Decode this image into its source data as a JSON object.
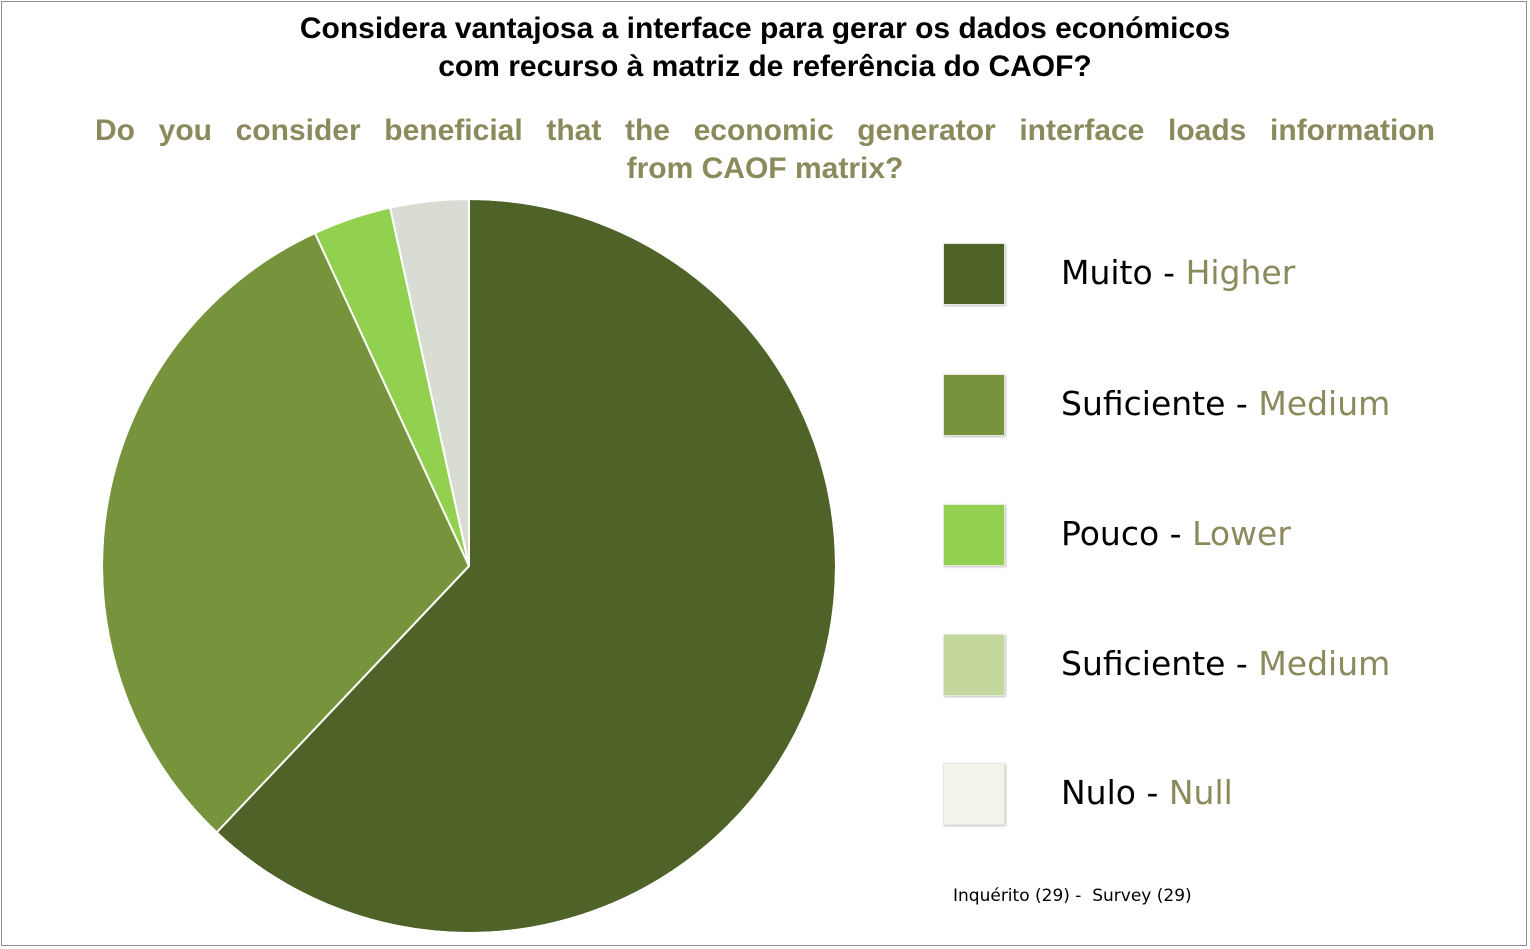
{
  "chart_data": {
    "type": "pie",
    "title": "Considera vantajosa a interface para gerar os dados económicos com recurso à matriz de referência do CAOF?",
    "title_lines": [
      "Considera vantajosa a interface para gerar os dados económicos",
      "com recurso à matriz de referência do CAOF?"
    ],
    "subtitle": "Do you consider beneficial that the economic generator interface loads information from CAOF matrix?",
    "subtitle_lines": [
      "Do you consider beneficial that the economic generator interface loads information",
      "from CAOF matrix?"
    ],
    "slices": [
      {
        "label_pt": "Muito",
        "label_en": "Higher",
        "value": 18,
        "color": "#4f6228"
      },
      {
        "label_pt": "Suficiente",
        "label_en": "Medium",
        "value": 9,
        "color": "#77933c"
      },
      {
        "label_pt": "Pouco",
        "label_en": "Lower",
        "value": 1,
        "color": "#92d050"
      },
      {
        "label_pt": "Suficiente",
        "label_en": "Medium",
        "value": 0,
        "color": "#c3d69b"
      },
      {
        "label_pt": "Nulo",
        "label_en": "Null",
        "value": 1,
        "color": "#d8dcd2"
      }
    ],
    "legend_items": [
      {
        "label_pt": "Muito",
        "separator": " - ",
        "label_en": "Higher",
        "color": "#4f6228"
      },
      {
        "label_pt": "Suficiente",
        "separator": " - ",
        "label_en": "Medium",
        "color": "#77933c"
      },
      {
        "label_pt": "Pouco",
        "separator": " - ",
        "label_en": "Lower",
        "color": "#92d050"
      },
      {
        "label_pt": "Suficiente",
        "separator": " - ",
        "label_en": "Medium",
        "color": "#c3d69b"
      },
      {
        "label_pt": "Nulo",
        "separator": " - ",
        "label_en": "Null",
        "color": "#f2f5ec"
      }
    ],
    "legend_position": "right",
    "footnote": "Inquérito (29) -  Survey (29)"
  },
  "colors": {
    "title": "#000000",
    "subtitle": "#8b8a5c",
    "slice_border": "#ffffff"
  }
}
